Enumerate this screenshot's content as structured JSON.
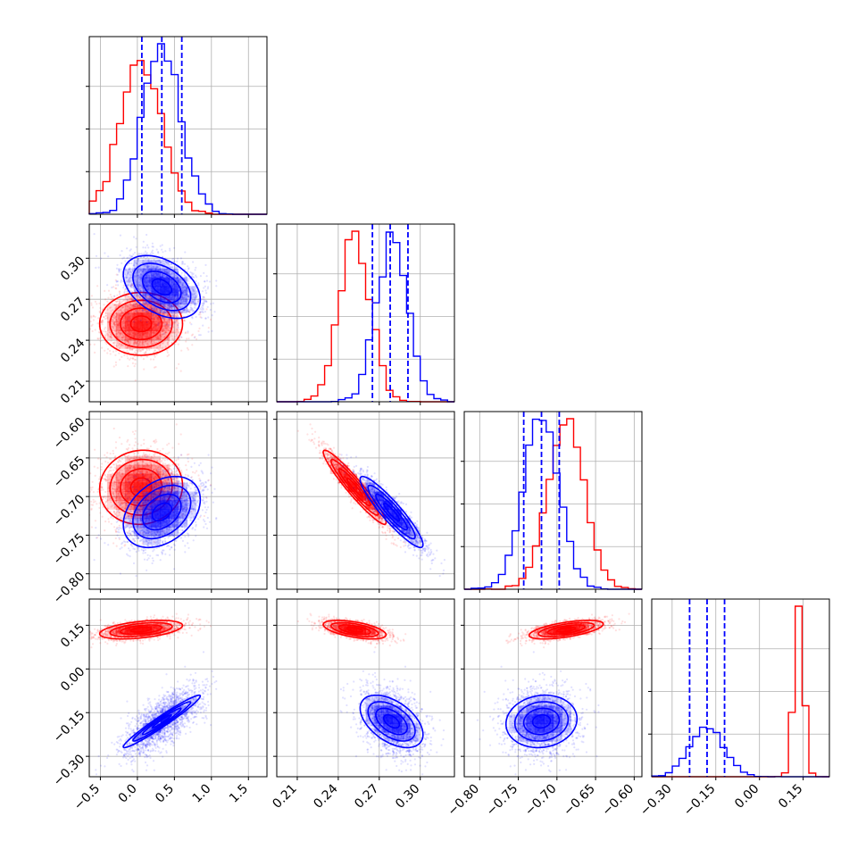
{
  "chart_data": {
    "type": "corner",
    "title": "",
    "params": [
      {
        "xlim": [
          -0.65,
          1.75
        ],
        "ticks": [
          -0.5,
          0.0,
          0.5,
          1.0,
          1.5
        ],
        "tick_labels": [
          "−0.5",
          "0.0",
          "0.5",
          "1.0",
          "1.5"
        ]
      },
      {
        "xlim": [
          0.195,
          0.325
        ],
        "ticks": [
          0.21,
          0.24,
          0.27,
          0.3
        ],
        "tick_labels": [
          "0.21",
          "0.24",
          "0.27",
          "0.30"
        ]
      },
      {
        "xlim": [
          -0.82,
          -0.59
        ],
        "ticks": [
          -0.8,
          -0.75,
          -0.7,
          -0.65,
          -0.6
        ],
        "tick_labels": [
          "−0.80",
          "−0.75",
          "−0.70",
          "−0.65",
          "−0.60"
        ]
      },
      {
        "xlim": [
          -0.37,
          0.24
        ],
        "ticks": [
          -0.3,
          -0.15,
          0.0,
          0.15
        ],
        "tick_labels": [
          "−0.30",
          "−0.15",
          "0.00",
          "0.15"
        ]
      }
    ],
    "series": [
      {
        "color": "#ff0000",
        "means": [
          0.05,
          0.252,
          -0.688,
          0.135
        ],
        "sigmas": [
          0.28,
          0.0115,
          0.024,
          0.016
        ],
        "corr": [
          [
            1,
            0,
            0.05,
            0.45
          ],
          [
            0,
            1,
            -0.95,
            -0.55
          ],
          [
            0.05,
            -0.95,
            1,
            0.6
          ],
          [
            0.45,
            -0.55,
            0.6,
            1
          ]
        ]
      },
      {
        "color": "#0000ff",
        "means": [
          0.33,
          0.279,
          -0.72,
          -0.18
        ],
        "sigmas": [
          0.26,
          0.0115,
          0.023,
          0.045
        ],
        "corr": [
          [
            1,
            -0.4,
            0.35,
            0.97
          ],
          [
            -0.4,
            1,
            -0.92,
            -0.5
          ],
          [
            0.35,
            -0.92,
            1,
            0.1
          ],
          [
            0.97,
            -0.5,
            0.1,
            1
          ]
        ]
      }
    ],
    "quantiles": {
      "color": "#0000ff",
      "values": [
        [
          0.06,
          0.33,
          0.6
        ],
        [
          0.265,
          0.278,
          0.291
        ],
        [
          -0.743,
          -0.72,
          -0.697
        ],
        [
          -0.24,
          -0.18,
          -0.12
        ]
      ]
    },
    "grid": true
  }
}
